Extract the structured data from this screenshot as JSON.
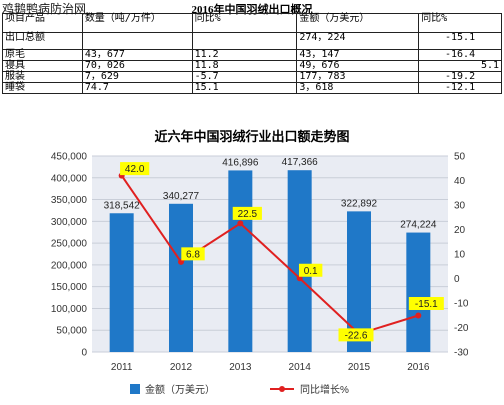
{
  "watermark": "鸡鹅鸭病防治网",
  "table": {
    "title": "2016年中国羽绒出口概况",
    "headers": [
      "项目产品",
      "数量（吨/万件）",
      "同比%",
      "金额（万美元）",
      "同比%"
    ],
    "rows": [
      [
        "出口总额",
        "",
        "",
        "274，224",
        "-15.1"
      ],
      [
        "原毛",
        "43，677",
        "11.2",
        "43，147",
        "-16.4"
      ],
      [
        "寝具",
        "70，026",
        "11.8",
        "49，676",
        "5.1"
      ],
      [
        "服装",
        "7，629",
        "-5.7",
        "177，783",
        "-19.2"
      ],
      [
        "睡袋",
        "74.7",
        "15.1",
        "3，618",
        "-12.1"
      ]
    ]
  },
  "chart_data": {
    "type": "bar",
    "title": "近六年中国羽绒行业出口额走势图",
    "categories": [
      "2011",
      "2012",
      "2013",
      "2014",
      "2015",
      "2016"
    ],
    "series": [
      {
        "name": "金额（万美元）",
        "type": "bar",
        "axis": "left",
        "color": "#1f78c8",
        "values": [
          318542,
          340277,
          416896,
          417366,
          322892,
          274224
        ],
        "labels": [
          "318,542",
          "340,277",
          "416,896",
          "417,366",
          "322,892",
          "274,224"
        ]
      },
      {
        "name": "同比增长%",
        "type": "line",
        "axis": "right",
        "color": "#e02020",
        "values": [
          42.0,
          6.8,
          22.5,
          0.1,
          -22.6,
          -15.1
        ],
        "labels": [
          "42.0",
          "6.8",
          "22.5",
          "0.1",
          "-22.6",
          "-15.1"
        ]
      }
    ],
    "ylim_left": [
      0,
      450000
    ],
    "yticks_left": [
      "0",
      "50,000",
      "100,000",
      "150,000",
      "200,000",
      "250,000",
      "300,000",
      "350,000",
      "400,000",
      "450,000"
    ],
    "ylim_right": [
      -30,
      50
    ],
    "yticks_right": [
      "-30",
      "-20",
      "-10",
      "0",
      "10",
      "20",
      "30",
      "40",
      "50"
    ],
    "grid": true,
    "legend_position": "bottom",
    "colors": {
      "background": "#e9ecf3",
      "label_box": "#ffff00"
    }
  }
}
